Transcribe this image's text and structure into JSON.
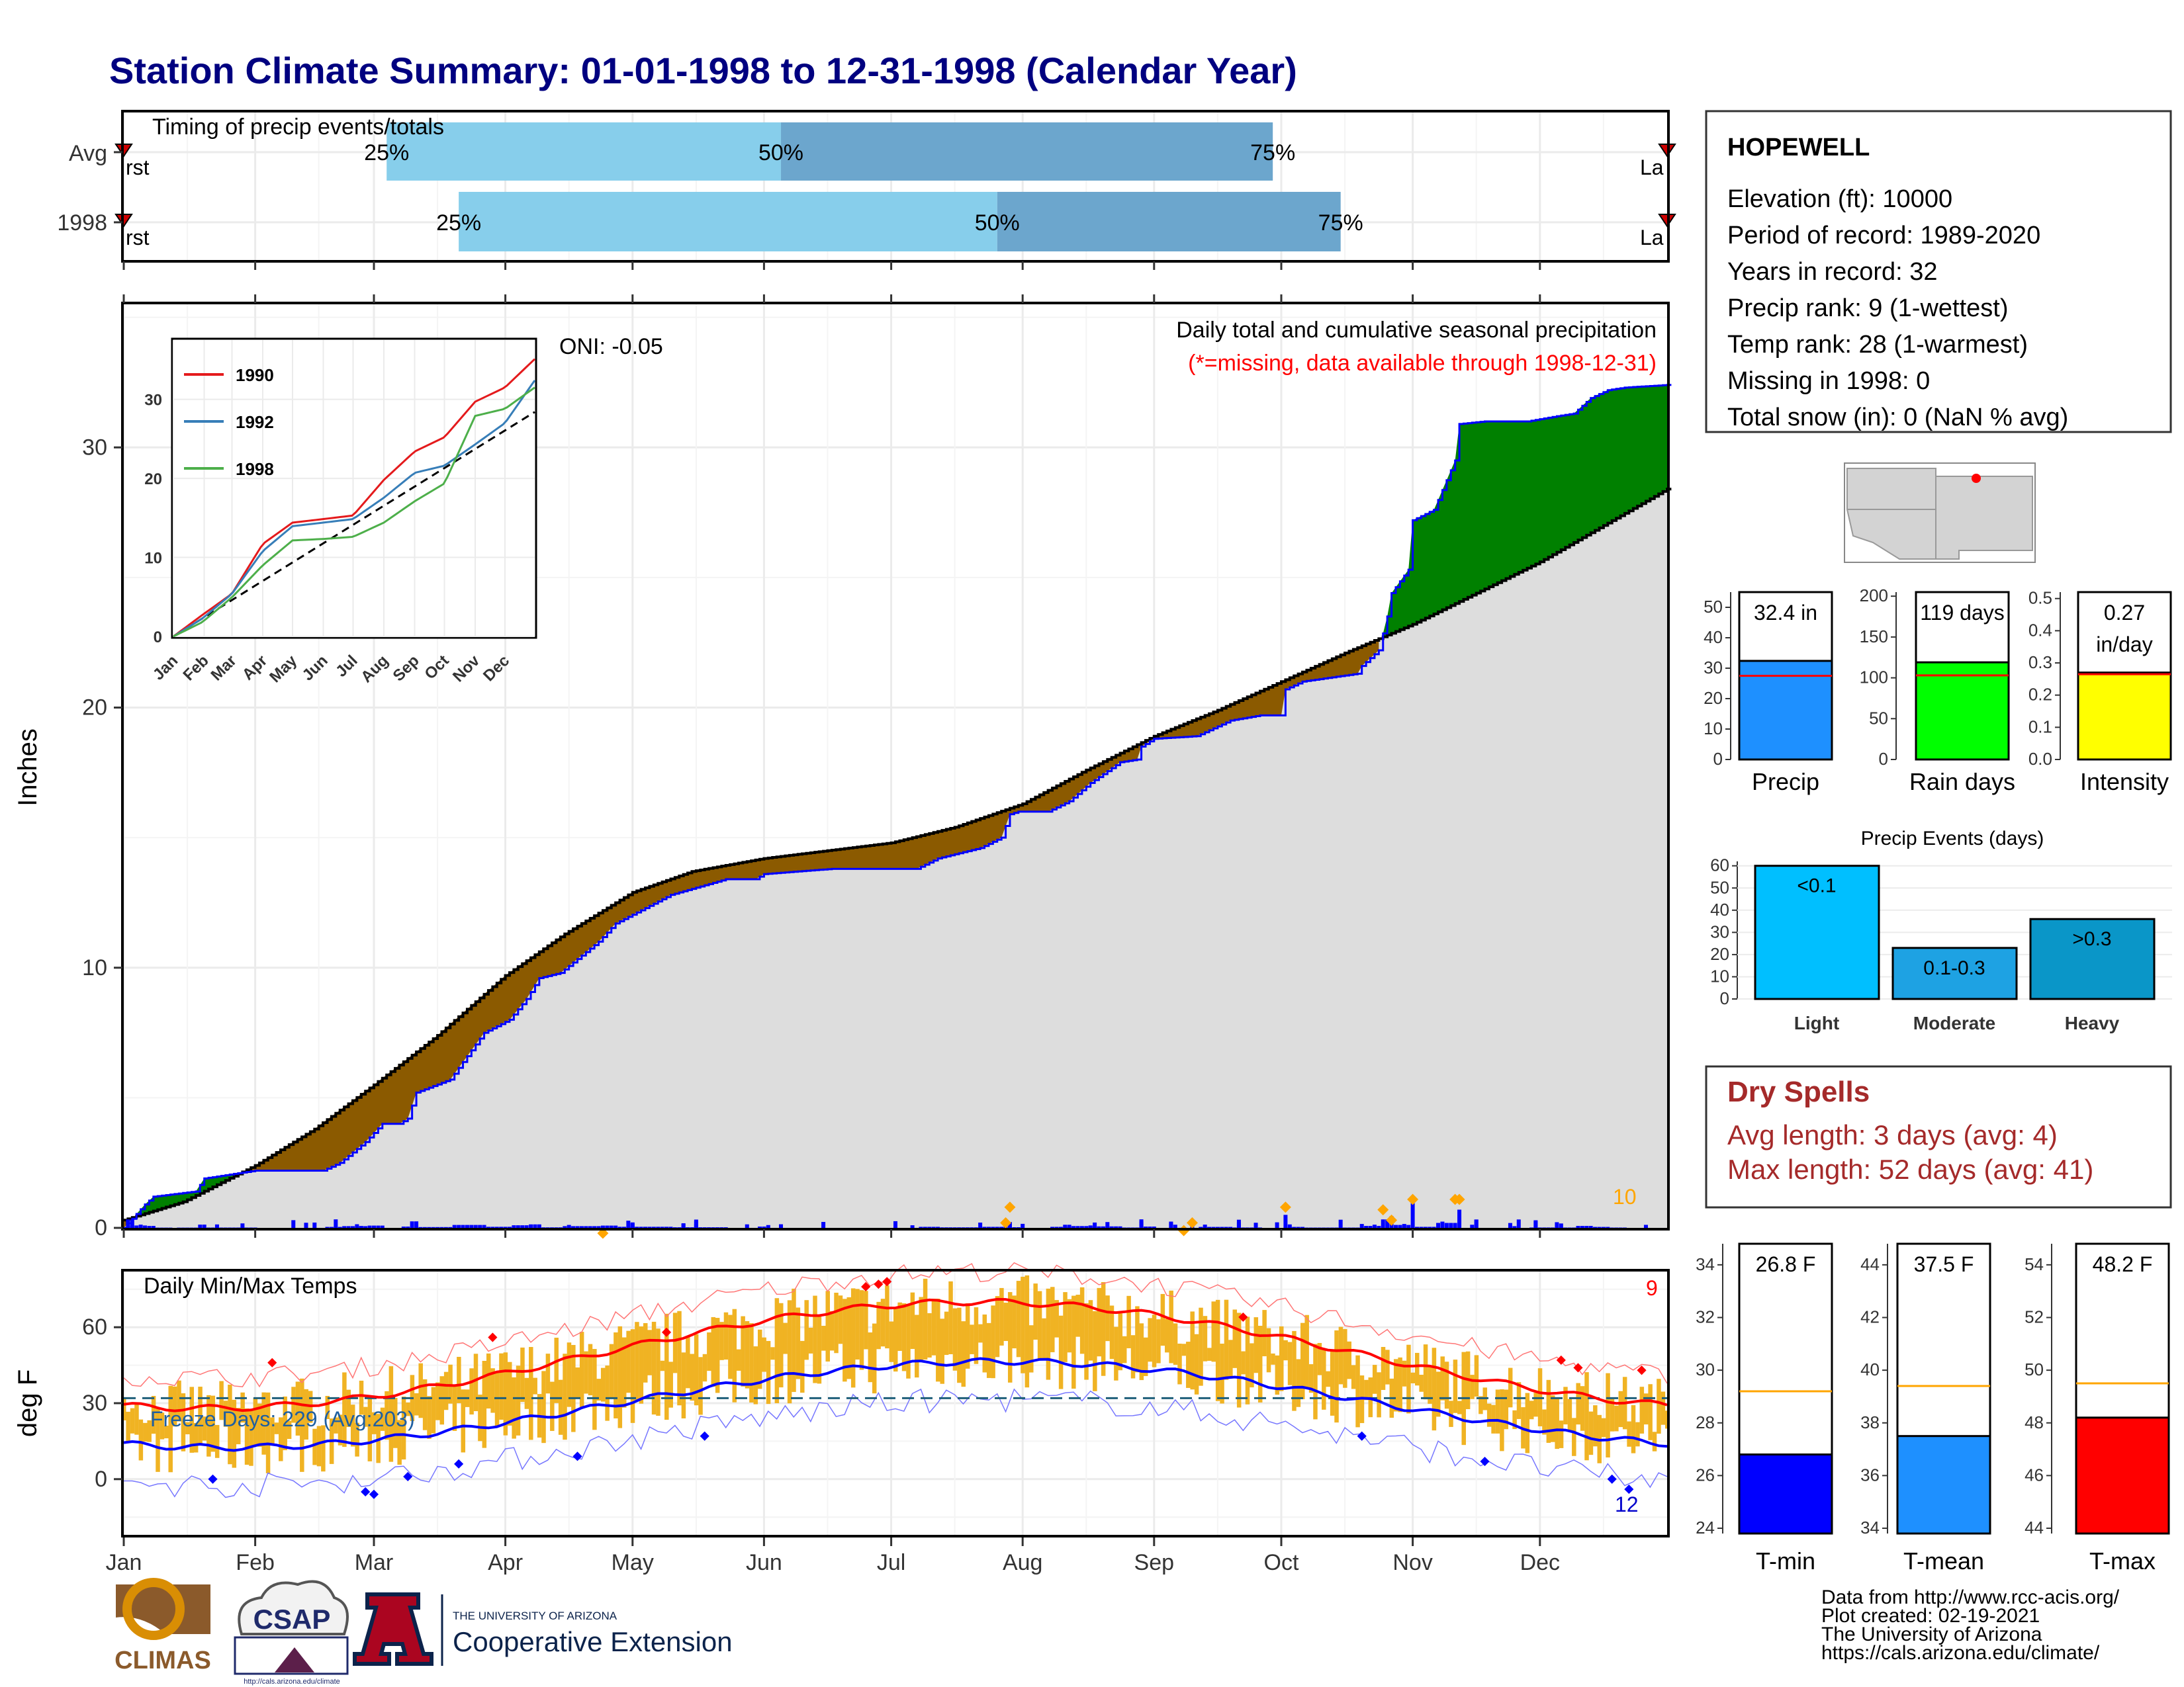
{
  "title": "Station Climate Summary: 01-01-1998 to 12-31-1998 (Calendar Year)",
  "colors": {
    "title": "#000080",
    "early": "#87CEEB",
    "late": "#6CA6CD",
    "surplus": "#008000",
    "deficit": "#8B5A00",
    "climo": "#DDDDDD",
    "bars": "#0000FF",
    "temp_bar": "#F0B323",
    "tmax": "#FF0000",
    "tmin": "#0000FF",
    "dry": "#A52A2A"
  },
  "timing": {
    "label": "Timing of precip events/totals",
    "rows": [
      {
        "name": "Avg",
        "first": "First",
        "last": "Last",
        "p25_doy": 63,
        "p50_doy": 156,
        "p75_doy": 272
      },
      {
        "name": "1998",
        "first": "First",
        "last": "Last",
        "p25_doy": 80,
        "p50_doy": 207,
        "p75_doy": 288
      }
    ],
    "pct_labels": [
      "25%",
      "50%",
      "75%"
    ]
  },
  "precip": {
    "ylabel": "Inches",
    "note1": "Daily total and cumulative seasonal precipitation",
    "note2": "(*=missing, data available through 1998-12-31)",
    "oni": "ONI: -0.05",
    "count_label": "10",
    "yticks": [
      "0",
      "10",
      "20",
      "30"
    ],
    "ylim": [
      0,
      35.5
    ],
    "climo_total": 28.4,
    "obs_total": 32.4
  },
  "inset": {
    "legend": [
      "1990",
      "1992",
      "1998"
    ],
    "series_colors": [
      "#E41A1C",
      "#377EB8",
      "#4DAF4A"
    ],
    "yticks": [
      "0",
      "10",
      "20",
      "30"
    ],
    "months": [
      "Jan",
      "Feb",
      "Mar",
      "Apr",
      "May",
      "Jun",
      "Jul",
      "Aug",
      "Sep",
      "Oct",
      "Nov",
      "Dec"
    ]
  },
  "temps": {
    "label": "Daily Min/Max Temps",
    "ylabel": "deg F",
    "freeze": "Freeze Days: 229 (Avg:203)",
    "max_count": "9",
    "min_count": "12",
    "yticks": [
      "0",
      "30",
      "60"
    ],
    "ylim": [
      -22,
      82
    ],
    "freeze_line": 32
  },
  "months": [
    "Jan",
    "Feb",
    "Mar",
    "Apr",
    "May",
    "Jun",
    "Jul",
    "Aug",
    "Sep",
    "Oct",
    "Nov",
    "Dec"
  ],
  "station": {
    "name": "HOPEWELL",
    "elevation": "Elevation (ft): 10000",
    "period": "Period of record: 1989-2020",
    "years": "Years in record: 32",
    "precip_rank": "Precip rank: 9 (1-wettest)",
    "temp_rank": "Temp rank: 28 (1-warmest)",
    "missing": "Missing in 1998: 0",
    "snow": "Total snow (in): 0 (NaN % avg)"
  },
  "summary_bars": [
    {
      "name": "Precip",
      "value_label": "32.4 in",
      "value": 32.4,
      "avg": 27.5,
      "ymax": 55,
      "ticks": [
        "0",
        "10",
        "20",
        "30",
        "40",
        "50"
      ],
      "tickvals": [
        0,
        10,
        20,
        30,
        40,
        50
      ],
      "color": "#1E90FF"
    },
    {
      "name": "Rain days",
      "value_label": "119 days",
      "value": 119,
      "avg": 103,
      "ymax": 205,
      "ticks": [
        "0",
        "50",
        "100",
        "150",
        "200"
      ],
      "tickvals": [
        0,
        50,
        100,
        150,
        200
      ],
      "color": "#00FF00"
    },
    {
      "name": "Intensity",
      "value_label": "0.27 in/day",
      "value_line1": "0.27",
      "value_line2": "in/day",
      "value": 0.27,
      "avg": 0.265,
      "ymax": 0.52,
      "ticks": [
        "0.0",
        "0.1",
        "0.2",
        "0.3",
        "0.4",
        "0.5"
      ],
      "tickvals": [
        0,
        0.1,
        0.2,
        0.3,
        0.4,
        0.5
      ],
      "color": "#FFFF00"
    }
  ],
  "events": {
    "title": "Precip Events (days)",
    "ticks": [
      "0",
      "10",
      "20",
      "30",
      "40",
      "50",
      "60"
    ],
    "categories": [
      "Light",
      "Moderate",
      "Heavy"
    ],
    "labels": [
      "<0.1",
      "0.1-0.3",
      ">0.3"
    ],
    "values": [
      60,
      23,
      36
    ],
    "colors": [
      "#00BFFF",
      "#1EA2E3",
      "#0A96C8"
    ]
  },
  "dry": {
    "title": "Dry Spells",
    "avg": "Avg length: 3 days (avg: 4)",
    "max": "Max length: 52 days (avg: 41)"
  },
  "temp_bars": [
    {
      "name": "T-min",
      "value_label": "26.8 F",
      "value": 26.8,
      "avg": 29.2,
      "ymin": 23.8,
      "ymax": 34.8,
      "ticks": [
        "24",
        "26",
        "28",
        "30",
        "32",
        "34"
      ],
      "tickvals": [
        24,
        26,
        28,
        30,
        32,
        34
      ],
      "color": "#0000FF"
    },
    {
      "name": "T-mean",
      "value_label": "37.5 F",
      "value": 37.5,
      "avg": 39.4,
      "ymin": 33.8,
      "ymax": 44.8,
      "ticks": [
        "34",
        "36",
        "38",
        "40",
        "42",
        "44"
      ],
      "tickvals": [
        34,
        36,
        38,
        40,
        42,
        44
      ],
      "color": "#1E90FF"
    },
    {
      "name": "T-max",
      "value_label": "48.2 F",
      "value": 48.2,
      "avg": 49.5,
      "ymin": 43.8,
      "ymax": 54.8,
      "ticks": [
        "44",
        "46",
        "48",
        "50",
        "52",
        "54"
      ],
      "tickvals": [
        44,
        46,
        48,
        50,
        52,
        54
      ],
      "color": "#FF0000"
    }
  ],
  "footer": {
    "line1": "Data from http://www.rcc-acis.org/",
    "line2": "Plot created: 02-19-2021",
    "line3": "The University of Arizona",
    "line4": "https://cals.arizona.edu/climate/"
  },
  "logos": {
    "climas": "CLIMAS",
    "csap": "CSAP",
    "csap_url": "http://cals.arizona.edu/climate",
    "ua_small": "THE UNIVERSITY OF ARIZONA",
    "ua_big": "Cooperative Extension"
  },
  "chart_data": [
    {
      "type": "bar",
      "title": "Timing of precip events/totals",
      "categories": [
        "Avg",
        "1998"
      ],
      "series": [
        {
          "name": "25%",
          "values": [
            63,
            80
          ]
        },
        {
          "name": "50%",
          "values": [
            156,
            207
          ]
        },
        {
          "name": "75%",
          "values": [
            272,
            288
          ]
        }
      ]
    },
    {
      "type": "area",
      "title": "Daily total and cumulative seasonal precipitation",
      "ylabel": "Inches",
      "ylim": [
        0,
        35.5
      ],
      "x_unit": "day of year",
      "series": [
        {
          "name": "cumulative climatology",
          "x": [
            1,
            32,
            60,
            91,
            121,
            152,
            182,
            213,
            244,
            274,
            305,
            335,
            365
          ],
          "values": [
            0.3,
            2.4,
            5.5,
            9.7,
            12.9,
            14.2,
            14.8,
            16.3,
            18.9,
            21.0,
            23.2,
            25.6,
            28.4
          ]
        },
        {
          "name": "cumulative 1998",
          "x": [
            1,
            32,
            60,
            91,
            121,
            152,
            182,
            213,
            244,
            274,
            305,
            335,
            365
          ],
          "values": [
            1.2,
            2.2,
            4.0,
            9.5,
            13.6,
            13.7,
            13.8,
            16.0,
            19.0,
            21.5,
            30.8,
            31.7,
            32.4
          ]
        }
      ]
    },
    {
      "type": "line",
      "title": "Daily Min/Max Temps",
      "ylabel": "deg F",
      "ylim": [
        -22,
        82
      ],
      "categories": [
        "Jan",
        "Feb",
        "Mar",
        "Apr",
        "May",
        "Jun",
        "Jul",
        "Aug",
        "Sep",
        "Oct",
        "Nov",
        "Dec"
      ],
      "series": [
        {
          "name": "avg max",
          "values": [
            28,
            29,
            33,
            40,
            52,
            63,
            70,
            68,
            62,
            52,
            38,
            30
          ]
        },
        {
          "name": "avg min",
          "values": [
            13,
            13,
            16,
            22,
            30,
            39,
            46,
            45,
            40,
            30,
            19,
            14
          ]
        }
      ]
    },
    {
      "type": "bar",
      "title": "Precip Events (days)",
      "categories": [
        "Light",
        "Moderate",
        "Heavy"
      ],
      "values": [
        60,
        23,
        36
      ]
    }
  ]
}
